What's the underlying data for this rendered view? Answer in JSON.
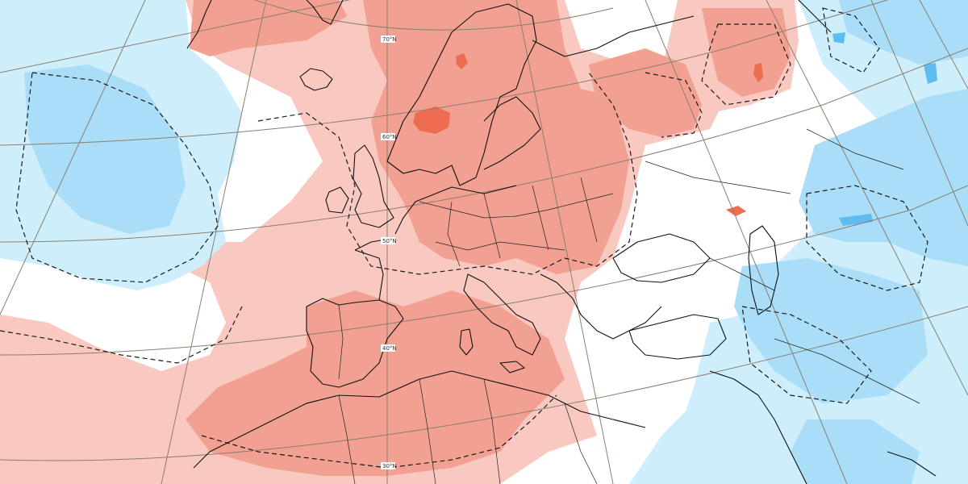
{
  "map": {
    "latitude_labels": [
      "70°N",
      "60°N",
      "50°N",
      "40°N",
      "30°N"
    ],
    "colors": {
      "warm_light": "#f9c9c1",
      "warm_medium": "#f2a091",
      "warm_strong": "#ee6c52",
      "cool_light": "#cfeefc",
      "cool_medium": "#a9ddf8",
      "cool_strong": "#5ebcf0"
    }
  }
}
